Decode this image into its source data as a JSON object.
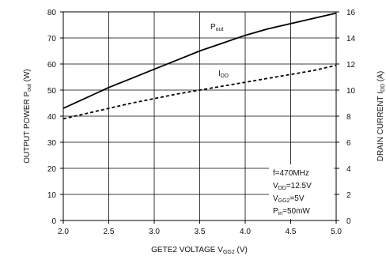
{
  "chart_data": {
    "type": "line",
    "x_axis": {
      "label": {
        "main": "GETE2 VOLTAGE V",
        "sub": "GG2",
        "suffix": " (V)"
      },
      "range": [
        2.0,
        5.0
      ],
      "ticks": [
        2.0,
        2.5,
        3.0,
        3.5,
        4.0,
        4.5,
        5.0
      ],
      "tick_labels": [
        "2.0",
        "2.5",
        "3.0",
        "3.5",
        "4.0",
        "4.5",
        "5.0"
      ]
    },
    "y_left_axis": {
      "label": {
        "main": "OUTPUT POWER P",
        "sub": "out",
        "suffix": " (W)"
      },
      "range": [
        0,
        80
      ],
      "ticks": [
        0,
        10,
        20,
        30,
        40,
        50,
        60,
        70,
        80
      ],
      "tick_labels": [
        "0",
        "10",
        "20",
        "30",
        "40",
        "50",
        "60",
        "70",
        "80"
      ]
    },
    "y_right_axis": {
      "label": {
        "main": "DRAIN CURRENT I",
        "sub": "DD",
        "suffix": " (A)"
      },
      "range": [
        0,
        16
      ],
      "ticks": [
        0,
        2,
        4,
        6,
        8,
        10,
        12,
        14,
        16
      ],
      "tick_labels": [
        "0",
        "2",
        "4",
        "6",
        "8",
        "10",
        "12",
        "14",
        "16"
      ]
    },
    "grid": true,
    "series": [
      {
        "name": {
          "main": "P",
          "sub": "out"
        },
        "axis": "left",
        "style": "solid",
        "color": "#000000",
        "x": [
          2.0,
          2.25,
          2.5,
          2.75,
          3.0,
          3.25,
          3.5,
          3.75,
          4.0,
          4.25,
          4.5,
          4.75,
          5.0
        ],
        "y": [
          43,
          47,
          51,
          54.5,
          58,
          61.5,
          65,
          68,
          71,
          73.5,
          75.5,
          77.5,
          79.5
        ]
      },
      {
        "name": {
          "main": "I",
          "sub": "DD"
        },
        "axis": "right",
        "style": "dashed",
        "color": "#000000",
        "x": [
          2.0,
          2.25,
          2.5,
          2.75,
          3.0,
          3.25,
          3.5,
          3.75,
          4.0,
          4.25,
          4.5,
          4.75,
          5.0
        ],
        "y": [
          7.8,
          8.2,
          8.6,
          9.0,
          9.35,
          9.7,
          10.0,
          10.3,
          10.6,
          10.9,
          11.2,
          11.5,
          11.9
        ]
      }
    ],
    "annotations": [
      {
        "main": "f=470MHz",
        "sub": "",
        "suffix": ""
      },
      {
        "main": "V",
        "sub": "DD",
        "suffix": "=12.5V"
      },
      {
        "main": "V",
        "sub": "GG2",
        "suffix": "=5V"
      },
      {
        "main": "P",
        "sub": "in",
        "suffix": "=50mW"
      }
    ]
  }
}
